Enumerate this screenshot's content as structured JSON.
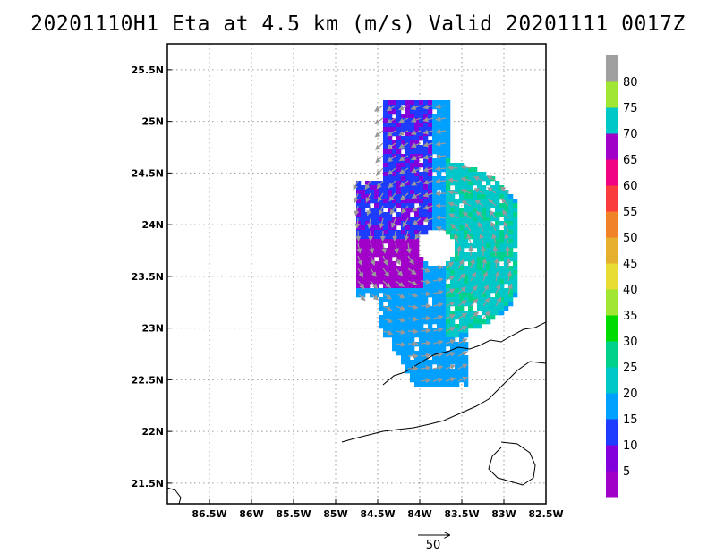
{
  "title": "20201110H1 Eta at 4.5 km (m/s) Valid 20201111 0017Z",
  "map": {
    "lon_range": [
      -87.0,
      -82.5
    ],
    "lat_range": [
      21.3,
      25.75
    ],
    "lon_ticks": [
      {
        "value": -86.5,
        "label": "86.5W"
      },
      {
        "value": -86.0,
        "label": "86W"
      },
      {
        "value": -85.5,
        "label": "85.5W"
      },
      {
        "value": -85.0,
        "label": "85W"
      },
      {
        "value": -84.5,
        "label": "84.5W"
      },
      {
        "value": -84.0,
        "label": "84W"
      },
      {
        "value": -83.5,
        "label": "83.5W"
      },
      {
        "value": -83.0,
        "label": "83W"
      },
      {
        "value": -82.5,
        "label": "82.5W"
      }
    ],
    "lat_ticks": [
      {
        "value": 25.5,
        "label": "25.5N"
      },
      {
        "value": 25.0,
        "label": "25N"
      },
      {
        "value": 24.5,
        "label": "24.5N"
      },
      {
        "value": 24.0,
        "label": "24N"
      },
      {
        "value": 23.5,
        "label": "23.5N"
      },
      {
        "value": 23.0,
        "label": "23N"
      },
      {
        "value": 22.5,
        "label": "22.5N"
      },
      {
        "value": 22.0,
        "label": "22N"
      },
      {
        "value": 21.5,
        "label": "21.5N"
      }
    ],
    "grid": "dotted"
  },
  "colorbar": {
    "levels": [
      5,
      10,
      15,
      20,
      25,
      30,
      35,
      40,
      45,
      50,
      55,
      60,
      65,
      70,
      75,
      80
    ],
    "colors": [
      "#a000c8",
      "#8200dc",
      "#1e3cff",
      "#00a0ff",
      "#00c8c8",
      "#00d28c",
      "#00dc00",
      "#a0e632",
      "#e6dc32",
      "#e6af2d",
      "#f08228",
      "#fa3c3c",
      "#f00082",
      "#a000c8",
      "#00c8c8",
      "#a0e632",
      "#a0a0a0"
    ]
  },
  "reference_vector": {
    "label": "50"
  }
}
